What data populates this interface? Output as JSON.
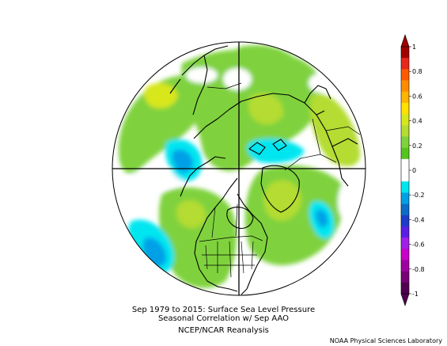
{
  "figure": {
    "title_line1": "Sep 1979 to 2015: Surface Sea Level Pressure",
    "title_line2": "Seasonal Correlation w/ Sep AAO",
    "source": "NCEP/NCAR Reanalysis",
    "credit": "NOAA Physical Sciences Laboratory"
  },
  "map": {
    "projection": "polar stereographic, Northern Hemisphere",
    "field": "correlation",
    "background_color": "#ffffff",
    "coastline_color": "#000000"
  },
  "colorbar": {
    "tick_labels": [
      "1",
      "0.8",
      "0.6",
      "0.4",
      "0.2",
      "0",
      "-0.2",
      "-0.4",
      "-0.6",
      "-0.8",
      "-1"
    ],
    "bands_top_to_bottom": [
      "#a10000",
      "#e8261c",
      "#ff5a00",
      "#ff8c00",
      "#ffb400",
      "#ffe100",
      "#d8e61e",
      "#b4dc32",
      "#7fd23c",
      "#55c51e",
      "#ffffff",
      "#ffffff",
      "#00e6f0",
      "#00a0e6",
      "#0a6ec8",
      "#1e3cc8",
      "#5a1ee6",
      "#a01ee6",
      "#c800c8",
      "#a000a0",
      "#780078",
      "#500050"
    ]
  }
}
